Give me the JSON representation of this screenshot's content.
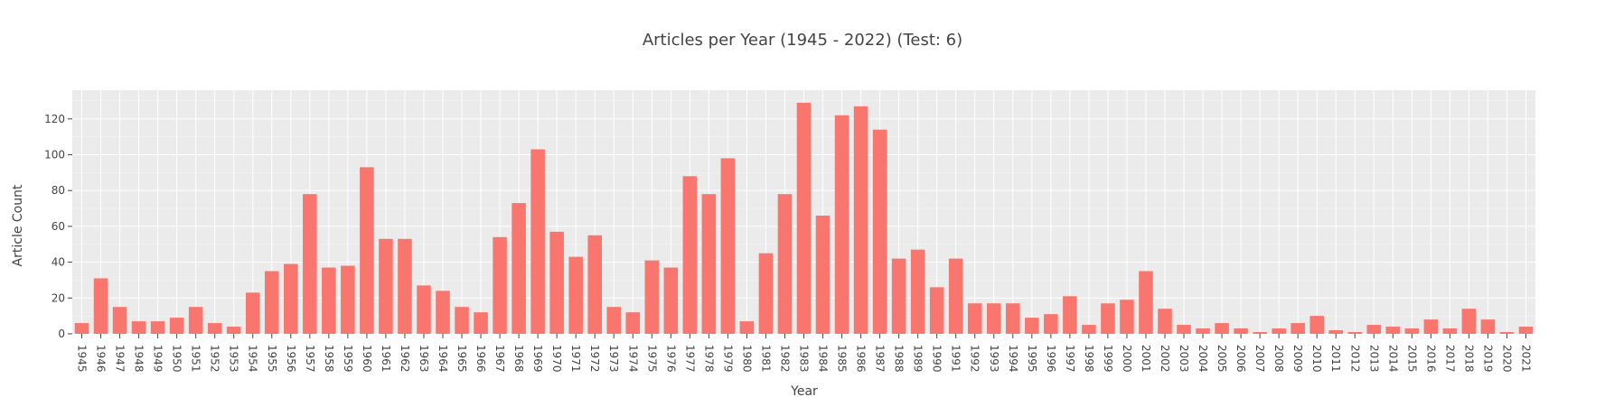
{
  "chart_data": {
    "type": "bar",
    "title": "Articles per Year (1945 - 2022) (Test: 6)",
    "xlabel": "Year",
    "ylabel": "Article Count",
    "ylim": [
      0,
      136
    ],
    "yticks": [
      0,
      20,
      40,
      60,
      80,
      100,
      120
    ],
    "grid": true,
    "legend": "none",
    "bar_color": "#F8766D",
    "plot_bg": "#EBEBEB",
    "categories": [
      "1945",
      "1946",
      "1947",
      "1948",
      "1949",
      "1950",
      "1951",
      "1952",
      "1953",
      "1954",
      "1955",
      "1956",
      "1957",
      "1958",
      "1959",
      "1960",
      "1961",
      "1962",
      "1963",
      "1964",
      "1965",
      "1966",
      "1967",
      "1968",
      "1969",
      "1970",
      "1971",
      "1972",
      "1973",
      "1974",
      "1975",
      "1976",
      "1977",
      "1978",
      "1979",
      "1980",
      "1981",
      "1982",
      "1983",
      "1984",
      "1985",
      "1986",
      "1987",
      "1988",
      "1989",
      "1990",
      "1991",
      "1992",
      "1993",
      "1994",
      "1995",
      "1996",
      "1997",
      "1998",
      "1999",
      "2000",
      "2001",
      "2002",
      "2003",
      "2004",
      "2005",
      "2006",
      "2007",
      "2008",
      "2009",
      "2010",
      "2011",
      "2012",
      "2013",
      "2014",
      "2015",
      "2016",
      "2017",
      "2018",
      "2019",
      "2020",
      "2021"
    ],
    "values": [
      6,
      31,
      15,
      7,
      7,
      9,
      15,
      6,
      4,
      23,
      35,
      39,
      78,
      37,
      38,
      93,
      53,
      53,
      27,
      24,
      15,
      12,
      54,
      73,
      103,
      57,
      43,
      55,
      15,
      12,
      41,
      37,
      88,
      78,
      98,
      7,
      45,
      78,
      129,
      66,
      122,
      127,
      114,
      42,
      47,
      26,
      42,
      17,
      17,
      17,
      9,
      11,
      21,
      5,
      17,
      19,
      35,
      14,
      5,
      3,
      6,
      3,
      1,
      3,
      6,
      10,
      2,
      1,
      5,
      4,
      3,
      8,
      3,
      14,
      8,
      1,
      4
    ]
  }
}
